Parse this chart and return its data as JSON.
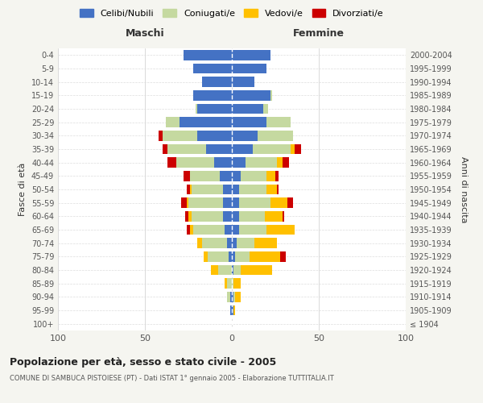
{
  "age_groups": [
    "100+",
    "95-99",
    "90-94",
    "85-89",
    "80-84",
    "75-79",
    "70-74",
    "65-69",
    "60-64",
    "55-59",
    "50-54",
    "45-49",
    "40-44",
    "35-39",
    "30-34",
    "25-29",
    "20-24",
    "15-19",
    "10-14",
    "5-9",
    "0-4"
  ],
  "birth_years": [
    "≤ 1904",
    "1905-1909",
    "1910-1914",
    "1915-1919",
    "1920-1924",
    "1925-1929",
    "1930-1934",
    "1935-1939",
    "1940-1944",
    "1945-1949",
    "1950-1954",
    "1955-1959",
    "1960-1964",
    "1965-1969",
    "1970-1974",
    "1975-1979",
    "1980-1984",
    "1985-1989",
    "1990-1994",
    "1995-1999",
    "2000-2004"
  ],
  "male": {
    "celibi": [
      0,
      1,
      1,
      0,
      0,
      2,
      3,
      4,
      5,
      5,
      5,
      7,
      10,
      15,
      20,
      30,
      20,
      22,
      17,
      22,
      28
    ],
    "coniugati": [
      0,
      0,
      2,
      3,
      8,
      12,
      14,
      18,
      18,
      20,
      18,
      17,
      22,
      22,
      20,
      8,
      1,
      0,
      0,
      0,
      0
    ],
    "vedovi": [
      0,
      0,
      0,
      1,
      4,
      2,
      3,
      2,
      2,
      1,
      1,
      0,
      0,
      0,
      0,
      0,
      0,
      0,
      0,
      0,
      0
    ],
    "divorziati": [
      0,
      0,
      0,
      0,
      0,
      0,
      0,
      2,
      2,
      3,
      2,
      4,
      5,
      3,
      2,
      0,
      0,
      0,
      0,
      0,
      0
    ]
  },
  "female": {
    "nubili": [
      0,
      1,
      1,
      0,
      1,
      2,
      3,
      4,
      4,
      4,
      4,
      5,
      8,
      12,
      15,
      20,
      18,
      22,
      13,
      20,
      22
    ],
    "coniugate": [
      0,
      0,
      1,
      1,
      4,
      8,
      10,
      16,
      15,
      18,
      16,
      15,
      18,
      22,
      20,
      14,
      3,
      1,
      0,
      0,
      0
    ],
    "vedove": [
      0,
      1,
      3,
      4,
      18,
      18,
      13,
      16,
      10,
      10,
      6,
      5,
      3,
      2,
      0,
      0,
      0,
      0,
      0,
      0,
      0
    ],
    "divorziate": [
      0,
      0,
      0,
      0,
      0,
      3,
      0,
      0,
      1,
      3,
      1,
      2,
      4,
      4,
      0,
      0,
      0,
      0,
      0,
      0,
      0
    ]
  },
  "colors": {
    "celibi": "#4472c4",
    "coniugati": "#c5d9a0",
    "vedovi": "#ffc000",
    "divorziati": "#cc0000"
  },
  "xlim": 100,
  "title": "Popolazione per età, sesso e stato civile - 2005",
  "subtitle": "COMUNE DI SAMBUCA PISTOIESE (PT) - Dati ISTAT 1° gennaio 2005 - Elaborazione TUTTITALIA.IT",
  "ylabel_left": "Fasce di età",
  "ylabel_right": "Anni di nascita",
  "xlabel_left": "Maschi",
  "xlabel_right": "Femmine",
  "legend_labels": [
    "Celibi/Nubili",
    "Coniugati/e",
    "Vedovi/e",
    "Divorziati/e"
  ],
  "bg_color": "#f5f5f0",
  "plot_bg": "#ffffff"
}
